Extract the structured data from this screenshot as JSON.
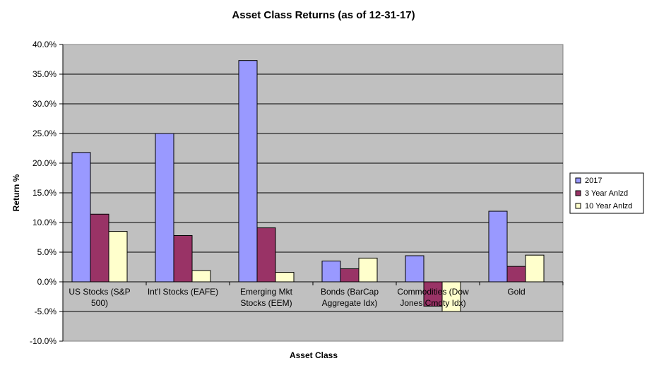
{
  "chart_data": {
    "type": "bar",
    "title": "Asset Class Returns (as of 12-31-17)",
    "xlabel": "Asset  Class",
    "ylabel": "Return  %",
    "categories": [
      [
        "US Stocks (S&P",
        "500)"
      ],
      [
        "Int'l Stocks (EAFE)"
      ],
      [
        "Emerging Mkt",
        "Stocks (EEM)"
      ],
      [
        "Bonds (BarCap",
        "Aggregate Idx)"
      ],
      [
        "Commodities (Dow",
        "Jones Cmdty Idx)"
      ],
      [
        "Gold"
      ]
    ],
    "series": [
      {
        "name": "2017",
        "color": "#9999FF",
        "values": [
          21.8,
          25.0,
          37.3,
          3.5,
          4.4,
          11.9
        ]
      },
      {
        "name": "3 Year Anlzd",
        "color": "#993366",
        "values": [
          11.4,
          7.8,
          9.1,
          2.2,
          -4.1,
          2.6
        ]
      },
      {
        "name": "10 Year Anlzd",
        "color": "#FFFFCC",
        "values": [
          8.5,
          1.9,
          1.6,
          4.0,
          -5.0,
          4.5
        ]
      }
    ],
    "ylim": [
      -10,
      40
    ],
    "yticks": [
      "-10.0%",
      "-5.0%",
      "0.0%",
      "5.0%",
      "10.0%",
      "15.0%",
      "20.0%",
      "25.0%",
      "30.0%",
      "35.0%",
      "40.0%"
    ],
    "grid": true,
    "plot_background": "#C0C0C0",
    "legend_position": "right"
  }
}
